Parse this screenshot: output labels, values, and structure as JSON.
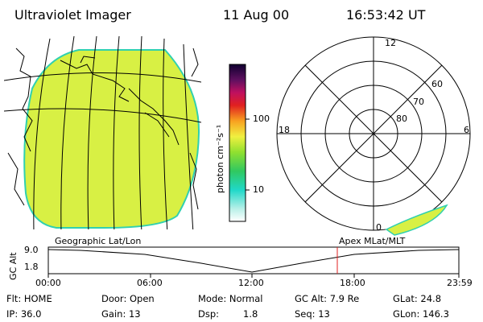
{
  "header": {
    "title": "Ultraviolet Imager",
    "date": "11 Aug 00",
    "time": "16:53:42 UT"
  },
  "colorbar": {
    "unit_label": "photon cm⁻²s⁻¹",
    "ticks": [
      "100",
      "10"
    ]
  },
  "polar_plot": {
    "mlt_labels": [
      "12",
      "18",
      "6",
      "0"
    ],
    "lat_labels": [
      "60",
      "70",
      "80"
    ]
  },
  "timeline": {
    "left_title": "Geographic Lat/Lon",
    "right_title": "Apex MLat/MLT",
    "axis_label": "GC Alt",
    "y_ticks": [
      "9.0",
      "1.8"
    ],
    "x_ticks": [
      "00:00",
      "06:00",
      "12:00",
      "18:00",
      "23:59"
    ],
    "current_time_marker": "16:53:42"
  },
  "status": {
    "flt": "Flt: HOME",
    "door": "Door: Open",
    "mode": "Mode: Normal",
    "gc_alt": "GC Alt: 7.9 Re",
    "glat": "GLat: 24.8",
    "ip": "IP: 36.0",
    "gain": "Gain: 13",
    "dsp_label": "Dsp:",
    "dsp_value": "1.8",
    "seq": "Seq: 13",
    "glon": "GLon: 146.3"
  },
  "colors": {
    "image_fill": "#d8f044",
    "marker": "#e02020"
  }
}
